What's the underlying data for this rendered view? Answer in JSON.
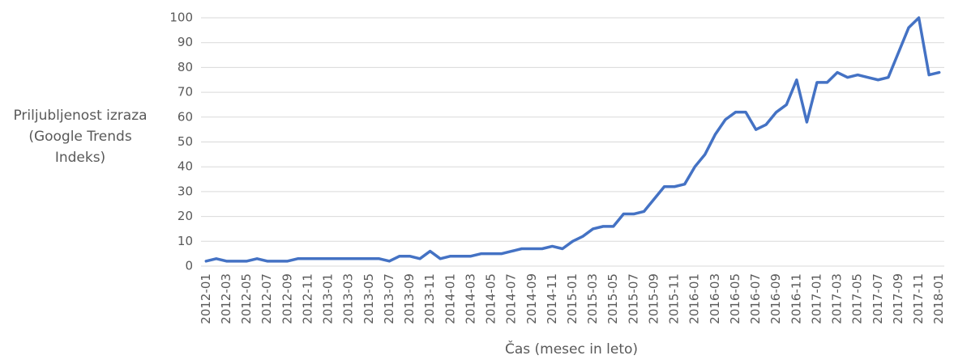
{
  "chart_data": {
    "type": "line",
    "ylabel": "Priljubljenost izraza (Google Trends Indeks)",
    "xlabel": "Čas (mesec in leto)",
    "categories": [
      "2012-01",
      null,
      "2012-03",
      null,
      "2012-05",
      null,
      "2012-07",
      null,
      "2012-09",
      null,
      "2012-11",
      null,
      "2013-01",
      null,
      "2013-03",
      null,
      "2013-05",
      null,
      "2013-07",
      null,
      "2013-09",
      null,
      "2013-11",
      null,
      "2014-01",
      null,
      "2014-03",
      null,
      "2014-05",
      null,
      "2014-07",
      null,
      "2014-09",
      null,
      "2014-11",
      null,
      "2015-01",
      null,
      "2015-03",
      null,
      "2015-05",
      null,
      "2015-07",
      null,
      "2015-09",
      null,
      "2015-11",
      null,
      "2016-01",
      null,
      "2016-03",
      null,
      "2016-05",
      null,
      "2016-07",
      null,
      "2016-09",
      null,
      "2016-11",
      null,
      "2017-01",
      null,
      "2017-03",
      null,
      "2017-05",
      null,
      "2017-07",
      null,
      "2017-09",
      null,
      "2017-11",
      null,
      "2018-01"
    ],
    "series": [
      {
        "color": "#4472c4",
        "values": [
          2,
          3,
          2,
          2,
          2,
          3,
          2,
          2,
          2,
          3,
          3,
          3,
          3,
          3,
          3,
          3,
          3,
          3,
          2,
          4,
          4,
          3,
          6,
          3,
          4,
          4,
          4,
          5,
          5,
          5,
          6,
          7,
          7,
          7,
          8,
          7,
          10,
          12,
          15,
          16,
          16,
          21,
          21,
          22,
          27,
          32,
          32,
          33,
          40,
          45,
          53,
          59,
          62,
          62,
          55,
          57,
          62,
          65,
          75,
          58,
          74,
          74,
          78,
          76,
          77,
          76,
          75,
          76,
          86,
          96,
          100,
          77,
          78
        ]
      }
    ],
    "ylim": [
      0,
      100
    ],
    "yticks": [
      0,
      10,
      20,
      30,
      40,
      50,
      60,
      70,
      80,
      90,
      100
    ],
    "grid": true
  }
}
